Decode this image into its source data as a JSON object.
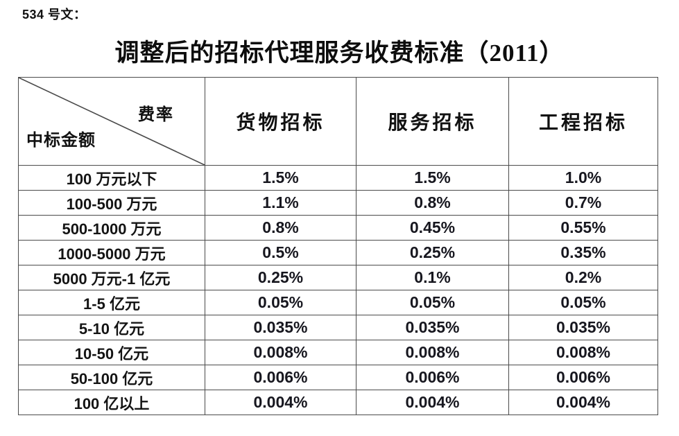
{
  "page": {
    "doc_label": "534 号文：",
    "title": "调整后的招标代理服务收费标准（2011）"
  },
  "table": {
    "corner": {
      "top_right": "费率",
      "bottom_left": "中标金额"
    },
    "columns": [
      "货物招标",
      "服务招标",
      "工程招标"
    ],
    "rows": [
      {
        "label": "100 万元以下",
        "values": [
          "1.5%",
          "1.5%",
          "1.0%"
        ]
      },
      {
        "label": "100-500 万元",
        "values": [
          "1.1%",
          "0.8%",
          "0.7%"
        ]
      },
      {
        "label": "500-1000 万元",
        "values": [
          "0.8%",
          "0.45%",
          "0.55%"
        ]
      },
      {
        "label": "1000-5000 万元",
        "values": [
          "0.5%",
          "0.25%",
          "0.35%"
        ]
      },
      {
        "label": "5000 万元-1 亿元",
        "values": [
          "0.25%",
          "0.1%",
          "0.2%"
        ]
      },
      {
        "label": "1-5 亿元",
        "values": [
          "0.05%",
          "0.05%",
          "0.05%"
        ]
      },
      {
        "label": "5-10 亿元",
        "values": [
          "0.035%",
          "0.035%",
          "0.035%"
        ]
      },
      {
        "label": "10-50 亿元",
        "values": [
          "0.008%",
          "0.008%",
          "0.008%"
        ]
      },
      {
        "label": "50-100 亿元",
        "values": [
          "0.006%",
          "0.006%",
          "0.006%"
        ]
      },
      {
        "label": "100 亿以上",
        "values": [
          "0.004%",
          "0.004%",
          "0.004%"
        ]
      }
    ]
  },
  "colors": {
    "text": "#1a1a1a",
    "border": "#4a4a4a",
    "background": "#ffffff"
  }
}
